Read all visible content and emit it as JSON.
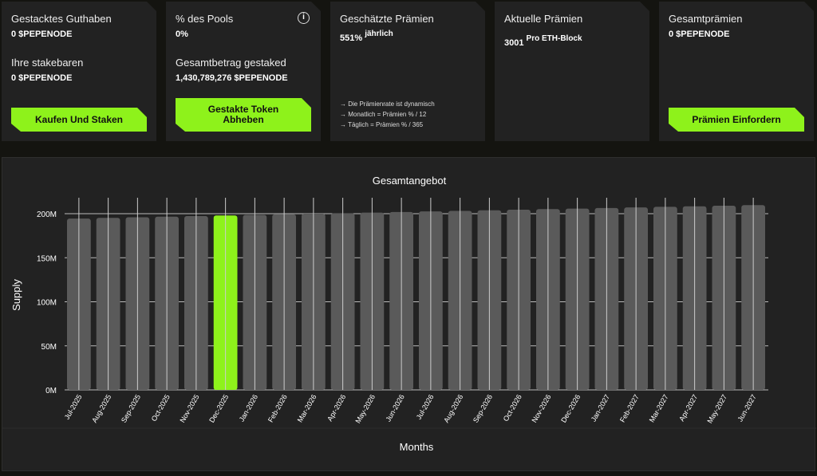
{
  "cards": [
    {
      "label1": "Gestacktes Guthaben",
      "value1": "0 $PEPENODE",
      "label2": "Ihre stakebaren",
      "value2": "0 $PEPENODE",
      "button": "Kaufen Und Staken"
    },
    {
      "label1": "% des Pools",
      "value1": "0%",
      "label2": "Gesamtbetrag gestaked",
      "value2": "1,430,789,276 $PEPENODE",
      "button_line1": "Gestakte Token",
      "button_line2": "Abheben",
      "info_icon": "i"
    },
    {
      "label1": "Geschätzte Prämien",
      "value": "551%",
      "suffix": "jährlich",
      "notes": [
        "→ Die Prämienrate ist dynamisch",
        "→ Monatlich = Prämien % / 12",
        "→ Täglich = Prämien % / 365"
      ]
    },
    {
      "label1": "Aktuelle Prämien",
      "value": "3001",
      "suffix": "Pro ETH-Block"
    },
    {
      "label1": "Gesamtprämien",
      "value1": "0 $PEPENODE",
      "button": "Prämien Einfordern"
    }
  ],
  "accent": "#8ef21b",
  "chart_data": {
    "type": "bar",
    "title": "Gesamtangebot",
    "xlabel": "Months",
    "ylabel": "Supply",
    "ylim": [
      0,
      200
    ],
    "yticks": [
      "0M",
      "50M",
      "100M",
      "150M",
      "200M"
    ],
    "categories": [
      "Jul-2025",
      "Aug-2025",
      "Sep-2025",
      "Oct-2025",
      "Nov-2025",
      "Dec-2025",
      "Jan-2026",
      "Feb-2026",
      "Mar-2026",
      "Apr-2026",
      "May-2026",
      "Jun-2026",
      "Jul-2026",
      "Aug-2026",
      "Sep-2026",
      "Oct-2026",
      "Nov-2026",
      "Dec-2026",
      "Jan-2027",
      "Feb-2027",
      "Mar-2027",
      "Apr-2027",
      "May-2027",
      "Jun-2027"
    ],
    "values": [
      194.5,
      195.2,
      195.9,
      196.6,
      197.3,
      198.0,
      198.6,
      199.3,
      200.0,
      200.6,
      201.3,
      201.9,
      202.6,
      203.2,
      203.9,
      204.5,
      205.2,
      205.8,
      206.5,
      207.1,
      207.8,
      208.4,
      209.1,
      209.7
    ],
    "highlight_index": 5,
    "highlight_color": "#8ef21b",
    "bar_color": "#5a5a5a",
    "grid": true
  }
}
